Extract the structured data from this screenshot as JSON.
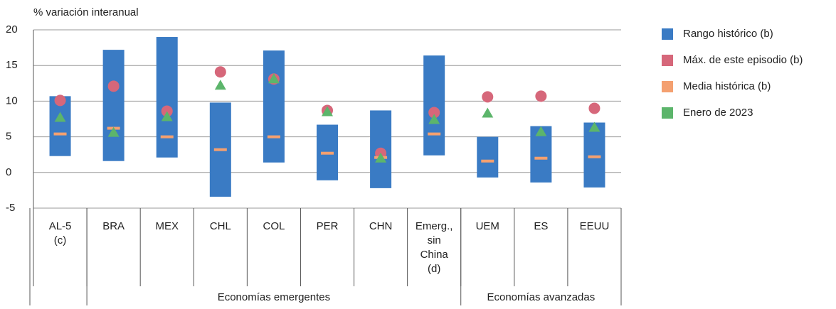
{
  "chart_data": {
    "type": "range",
    "y_label": "% variación interanual",
    "categories": [
      "AL-5\n(c)",
      "BRA",
      "MEX",
      "CHL",
      "COL",
      "PER",
      "CHN",
      "Emerg.,\nsin\nChina\n(d)",
      "UEM",
      "ES",
      "EEUU"
    ],
    "groups": [
      {
        "label": null,
        "span": 1
      },
      {
        "label": "Economías emergentes",
        "span": 7
      },
      {
        "label": "Economías avanzadas",
        "span": 3
      }
    ],
    "series": [
      {
        "name": "Rango histórico (b)",
        "kind": "range",
        "color": "#3a7bc4",
        "low": [
          2.3,
          1.6,
          2.1,
          -3.4,
          1.4,
          -1.1,
          -2.2,
          2.4,
          -0.7,
          -1.4,
          -2.1
        ],
        "high": [
          10.7,
          17.2,
          19.0,
          9.8,
          17.1,
          6.7,
          8.7,
          16.4,
          5.0,
          6.5,
          7.0
        ]
      },
      {
        "name": "Máx. de este episodio (b)",
        "kind": "circle",
        "color": "#d6677a",
        "values": [
          10.1,
          12.1,
          8.6,
          14.1,
          13.1,
          8.7,
          2.7,
          8.4,
          10.6,
          10.7,
          9.0
        ]
      },
      {
        "name": "Media histórica (b)",
        "kind": "dash",
        "color": "#f4a070",
        "values": [
          5.4,
          6.2,
          5.0,
          3.2,
          5.0,
          2.7,
          2.1,
          5.4,
          1.6,
          2.0,
          2.2
        ]
      },
      {
        "name": "Enero de 2023",
        "kind": "triangle",
        "color": "#5cb56b",
        "values": [
          7.7,
          5.6,
          7.8,
          12.2,
          13.1,
          8.5,
          2.0,
          7.4,
          8.3,
          5.7,
          6.3
        ]
      }
    ],
    "ylim": [
      -5,
      20
    ],
    "yticks": [
      -5,
      0,
      5,
      10,
      15,
      20
    ],
    "grid": true
  }
}
